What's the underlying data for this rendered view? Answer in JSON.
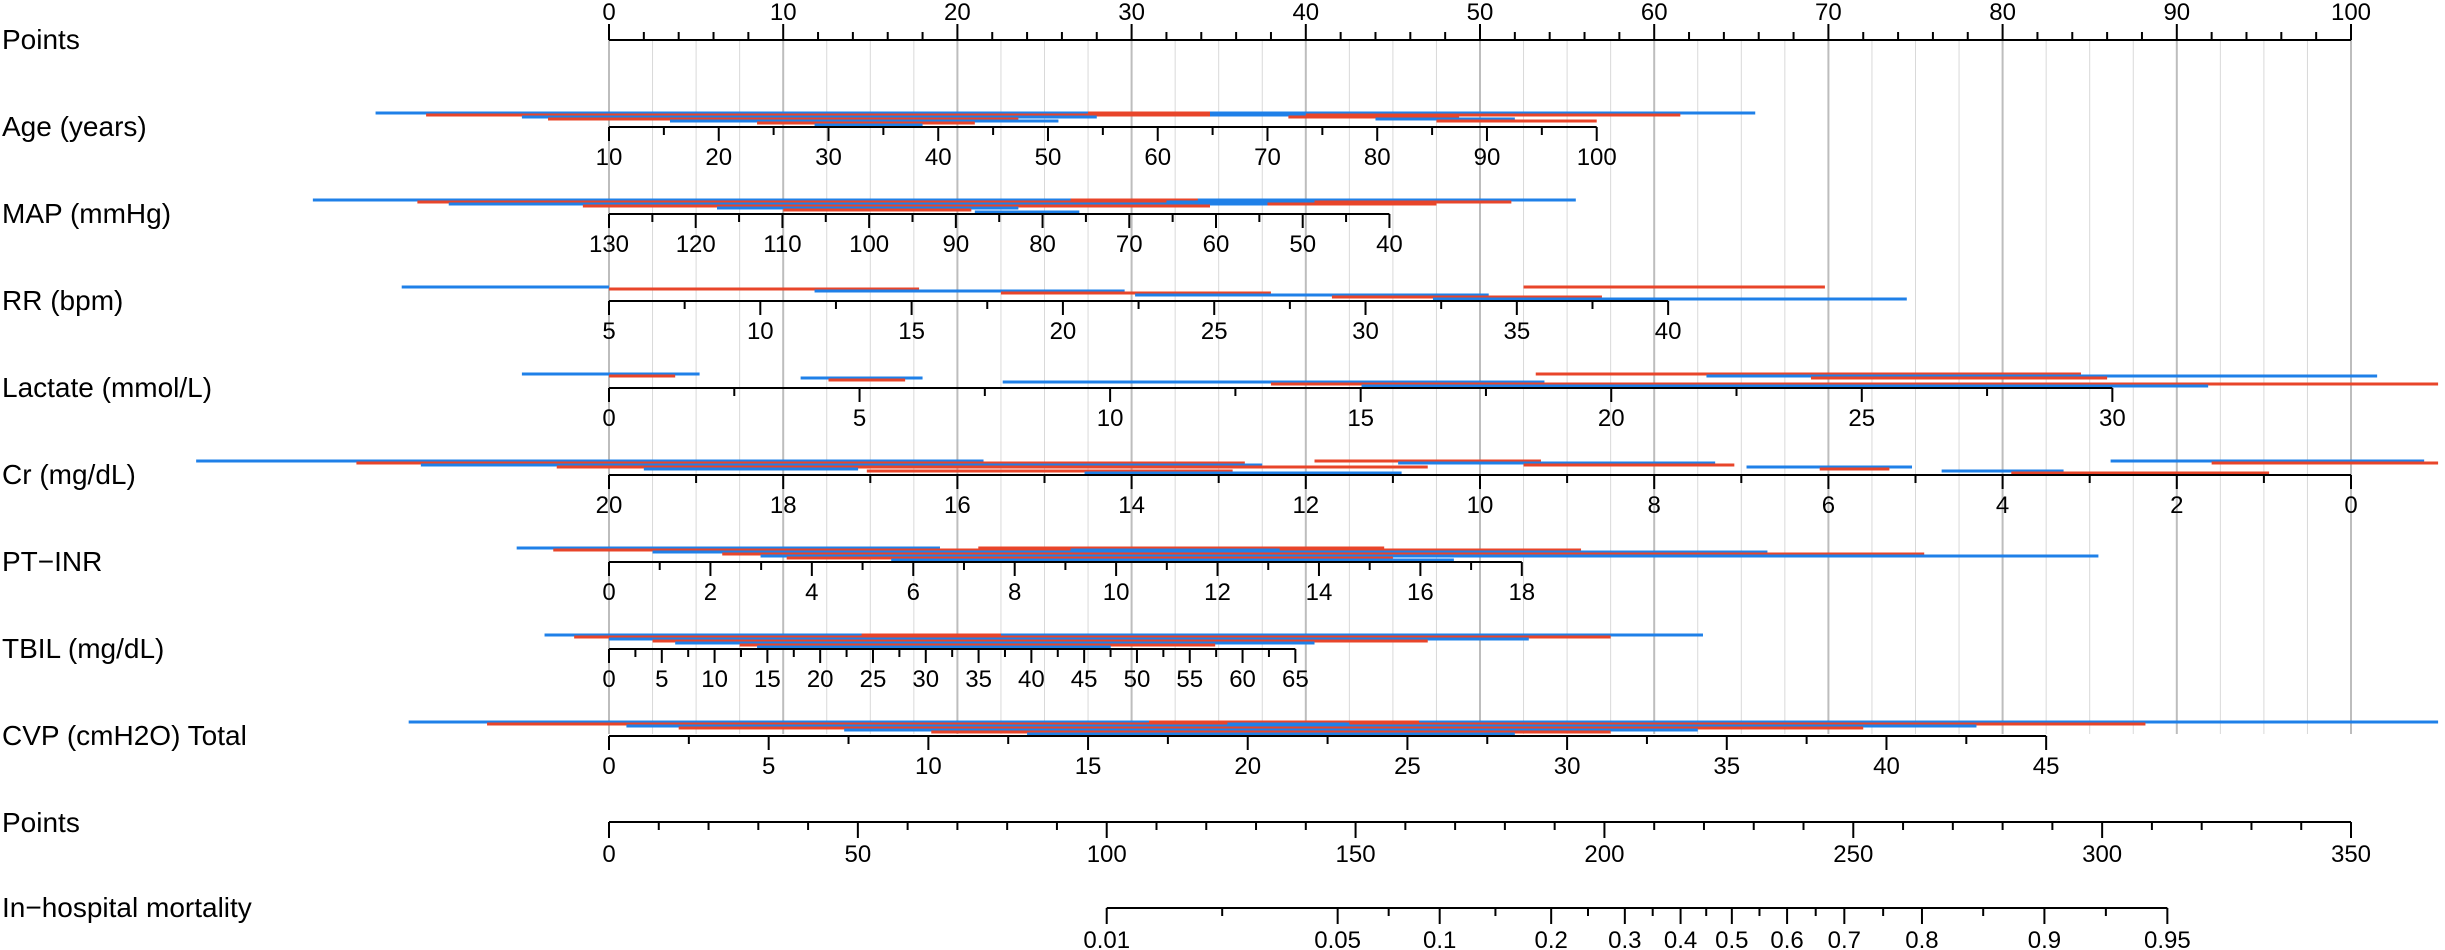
{
  "colors": {
    "axis": "#000000",
    "grid": "#d9d9d9",
    "grid_major": "#bdbdbd",
    "series_red": "#e8452a",
    "series_blue": "#1f80e8"
  },
  "chart_data": {
    "type": "nomogram",
    "points_axis": {
      "label": "Points",
      "range": [
        0,
        100
      ],
      "major_ticks": [
        0,
        10,
        20,
        30,
        40,
        50,
        60,
        70,
        80,
        90,
        100
      ],
      "minor_step": 2.5
    },
    "variables": [
      {
        "name": "age",
        "label": "Age (years)",
        "ticks": [
          10,
          20,
          30,
          40,
          50,
          60,
          70,
          80,
          90,
          100
        ],
        "points_at_first": 0,
        "points_at_last": 56.7
      },
      {
        "name": "map",
        "label": "MAP (mmHg)",
        "ticks": [
          130,
          120,
          110,
          100,
          90,
          80,
          70,
          60,
          50,
          40
        ],
        "points_at_first": 0,
        "points_at_last": 44.8
      },
      {
        "name": "rr",
        "label": "RR (bpm)",
        "ticks": [
          5,
          10,
          15,
          20,
          25,
          30,
          35,
          40
        ],
        "points_at_first": 0,
        "points_at_last": 60.8
      },
      {
        "name": "lactate",
        "label": "Lactate (mmol/L)",
        "ticks": [
          0,
          5,
          10,
          15,
          20,
          25,
          30
        ],
        "points_at_first": 0,
        "points_at_last": 86.3
      },
      {
        "name": "cr",
        "label": "Cr (mg/dL)",
        "ticks": [
          20,
          18,
          16,
          14,
          12,
          10,
          8,
          6,
          4,
          2,
          0
        ],
        "points_at_first": 0,
        "points_at_last": 100
      },
      {
        "name": "ptinr",
        "label": "PT−INR",
        "ticks": [
          0,
          2,
          4,
          6,
          8,
          10,
          12,
          14,
          16,
          18
        ],
        "points_at_first": 0,
        "points_at_last": 52.4
      },
      {
        "name": "tbil",
        "label": "TBIL (mg/dL)",
        "ticks": [
          0,
          5,
          10,
          15,
          20,
          25,
          30,
          35,
          40,
          45,
          50,
          55,
          60,
          65
        ],
        "points_at_first": 0,
        "points_at_last": 39.4
      },
      {
        "name": "cvp",
        "label": "CVP (cmH2O) Total",
        "ticks": [
          0,
          5,
          10,
          15,
          20,
          25,
          30,
          35,
          40,
          45
        ],
        "points_at_first": 0,
        "points_at_last": 82.5
      }
    ],
    "total_points_axis": {
      "label": "Points",
      "range": [
        0,
        350
      ],
      "major_ticks": [
        0,
        50,
        100,
        150,
        200,
        250,
        300,
        350
      ],
      "minor_step": 10
    },
    "probability_axis": {
      "label": "In−hospital mortality",
      "ticks": [
        "0.01",
        "0.05",
        "0.1",
        "0.2",
        "0.3",
        "0.4",
        "0.5",
        "0.6",
        "0.7",
        "0.8",
        "0.9",
        "0.95"
      ],
      "tick_values": [
        0.01,
        0.05,
        0.1,
        0.2,
        0.3,
        0.4,
        0.5,
        0.6,
        0.7,
        0.8,
        0.9,
        0.95
      ],
      "total_points_at_tick": [
        100,
        146.4,
        166.9,
        189.3,
        204.1,
        215.3,
        225.6,
        236.7,
        248.2,
        263.8,
        288.4,
        313.1
      ]
    },
    "sample_segments": [
      {
        "row": "age",
        "color": "blue",
        "from": -13.4,
        "to": 65.8
      },
      {
        "row": "age",
        "color": "red",
        "from": -10.5,
        "to": 61.5
      },
      {
        "row": "age",
        "color": "blue",
        "from": -5,
        "to": 28
      },
      {
        "row": "age",
        "color": "red",
        "from": -3.5,
        "to": 23.5
      },
      {
        "row": "age",
        "color": "blue",
        "from": 3.5,
        "to": 25.8
      },
      {
        "row": "age",
        "color": "red",
        "from": 8.5,
        "to": 21
      },
      {
        "row": "age",
        "color": "blue",
        "from": 11.8,
        "to": 18
      },
      {
        "row": "age",
        "color": "red",
        "from": 27.5,
        "to": 34.5
      },
      {
        "row": "age",
        "color": "blue",
        "from": 34.5,
        "to": 40
      },
      {
        "row": "age",
        "color": "red",
        "from": 39,
        "to": 48.8
      },
      {
        "row": "age",
        "color": "blue",
        "from": 44,
        "to": 52
      },
      {
        "row": "age",
        "color": "red",
        "from": 47.5,
        "to": 56.7
      },
      {
        "row": "map",
        "color": "blue",
        "from": -17,
        "to": 55.5
      },
      {
        "row": "map",
        "color": "red",
        "from": -11,
        "to": 51.8
      },
      {
        "row": "map",
        "color": "blue",
        "from": -9.2,
        "to": 40.5
      },
      {
        "row": "map",
        "color": "red",
        "from": -1.5,
        "to": 34.5
      },
      {
        "row": "map",
        "color": "blue",
        "from": 6.2,
        "to": 23.5
      },
      {
        "row": "map",
        "color": "red",
        "from": 10,
        "to": 20.8
      },
      {
        "row": "map",
        "color": "blue",
        "from": 21,
        "to": 27
      },
      {
        "row": "map",
        "color": "red",
        "from": 26.5,
        "to": 33.8
      },
      {
        "row": "map",
        "color": "blue",
        "from": 32,
        "to": 40.5
      },
      {
        "row": "map",
        "color": "red",
        "from": 37.8,
        "to": 47.5
      },
      {
        "row": "rr",
        "color": "blue",
        "from": -11.9,
        "to": 0
      },
      {
        "row": "rr",
        "color": "red",
        "from": 0,
        "to": 17.8
      },
      {
        "row": "rr",
        "color": "blue",
        "from": 11.8,
        "to": 29.6
      },
      {
        "row": "rr",
        "color": "red",
        "from": 22.5,
        "to": 38
      },
      {
        "row": "rr",
        "color": "blue",
        "from": 30.2,
        "to": 50.5
      },
      {
        "row": "rr",
        "color": "red",
        "from": 41.5,
        "to": 57
      },
      {
        "row": "rr",
        "color": "blue",
        "from": 47.3,
        "to": 74.5
      },
      {
        "row": "rr",
        "color": "red",
        "from": 52.5,
        "to": 69.8
      },
      {
        "row": "lactate",
        "color": "blue",
        "from": -5,
        "to": 5.2
      },
      {
        "row": "lactate",
        "color": "red",
        "from": 0,
        "to": 3.8
      },
      {
        "row": "lactate",
        "color": "blue",
        "from": 11,
        "to": 18
      },
      {
        "row": "lactate",
        "color": "red",
        "from": 12.6,
        "to": 17
      },
      {
        "row": "lactate",
        "color": "blue",
        "from": 22.6,
        "to": 53.7
      },
      {
        "row": "lactate",
        "color": "red",
        "from": 38,
        "to": 105
      },
      {
        "row": "lactate",
        "color": "blue",
        "from": 43.2,
        "to": 91.8
      },
      {
        "row": "lactate",
        "color": "red",
        "from": 53.2,
        "to": 84.5
      },
      {
        "row": "lactate",
        "color": "blue",
        "from": 63,
        "to": 101.5
      },
      {
        "row": "lactate",
        "color": "red",
        "from": 69,
        "to": 86
      },
      {
        "row": "cr",
        "color": "blue",
        "from": -23.7,
        "to": 21.5
      },
      {
        "row": "cr",
        "color": "red",
        "from": -14.5,
        "to": 36.5
      },
      {
        "row": "cr",
        "color": "blue",
        "from": -10.8,
        "to": 37.5
      },
      {
        "row": "cr",
        "color": "red",
        "from": -3,
        "to": 47
      },
      {
        "row": "cr",
        "color": "blue",
        "from": 2,
        "to": 14.3
      },
      {
        "row": "cr",
        "color": "red",
        "from": 14.8,
        "to": 35.8
      },
      {
        "row": "cr",
        "color": "blue",
        "from": 27.3,
        "to": 45.5
      },
      {
        "row": "cr",
        "color": "red",
        "from": 40.5,
        "to": 53.5
      },
      {
        "row": "cr",
        "color": "blue",
        "from": 45.3,
        "to": 63.5
      },
      {
        "row": "cr",
        "color": "red",
        "from": 52.5,
        "to": 64.6
      },
      {
        "row": "cr",
        "color": "blue",
        "from": 65.3,
        "to": 74.8
      },
      {
        "row": "cr",
        "color": "red",
        "from": 69.5,
        "to": 73.5
      },
      {
        "row": "cr",
        "color": "blue",
        "from": 76.5,
        "to": 83.5
      },
      {
        "row": "cr",
        "color": "red",
        "from": 80.5,
        "to": 95.3
      },
      {
        "row": "cr",
        "color": "blue",
        "from": 86.2,
        "to": 104.2
      },
      {
        "row": "cr",
        "color": "red",
        "from": 92,
        "to": 105
      },
      {
        "row": "ptinr",
        "color": "blue",
        "from": -5.3,
        "to": 19
      },
      {
        "row": "ptinr",
        "color": "red",
        "from": -3.2,
        "to": 55.8
      },
      {
        "row": "ptinr",
        "color": "blue",
        "from": 2.5,
        "to": 66.5
      },
      {
        "row": "ptinr",
        "color": "red",
        "from": 6.5,
        "to": 75.5
      },
      {
        "row": "ptinr",
        "color": "blue",
        "from": 8.7,
        "to": 85.5
      },
      {
        "row": "ptinr",
        "color": "red",
        "from": 10.2,
        "to": 45
      },
      {
        "row": "ptinr",
        "color": "blue",
        "from": 16.2,
        "to": 48.5
      },
      {
        "row": "ptinr",
        "color": "red",
        "from": 21.2,
        "to": 44.5
      },
      {
        "row": "ptinr",
        "color": "blue",
        "from": 26.5,
        "to": 38.5
      },
      {
        "row": "tbil",
        "color": "blue",
        "from": -3.7,
        "to": 62.8
      },
      {
        "row": "tbil",
        "color": "red",
        "from": -2,
        "to": 57.5
      },
      {
        "row": "tbil",
        "color": "blue",
        "from": 0,
        "to": 52.8
      },
      {
        "row": "tbil",
        "color": "red",
        "from": 2.5,
        "to": 47
      },
      {
        "row": "tbil",
        "color": "blue",
        "from": 3.8,
        "to": 40.5
      },
      {
        "row": "tbil",
        "color": "red",
        "from": 7.5,
        "to": 34.8
      },
      {
        "row": "tbil",
        "color": "blue",
        "from": 8.5,
        "to": 28.8
      },
      {
        "row": "tbil",
        "color": "red",
        "from": 14.5,
        "to": 22.5
      },
      {
        "row": "cvp",
        "color": "blue",
        "from": -11.5,
        "to": 105
      },
      {
        "row": "cvp",
        "color": "red",
        "from": -7,
        "to": 88.2
      },
      {
        "row": "cvp",
        "color": "blue",
        "from": 1,
        "to": 78.5
      },
      {
        "row": "cvp",
        "color": "red",
        "from": 4,
        "to": 72
      },
      {
        "row": "cvp",
        "color": "blue",
        "from": 13.5,
        "to": 62.5
      },
      {
        "row": "cvp",
        "color": "red",
        "from": 18.5,
        "to": 57.5
      },
      {
        "row": "cvp",
        "color": "blue",
        "from": 24,
        "to": 52
      },
      {
        "row": "cvp",
        "color": "red",
        "from": 31,
        "to": 46.5
      },
      {
        "row": "cvp",
        "color": "blue",
        "from": 35.5,
        "to": 42.5
      }
    ],
    "grid": "vertical"
  }
}
